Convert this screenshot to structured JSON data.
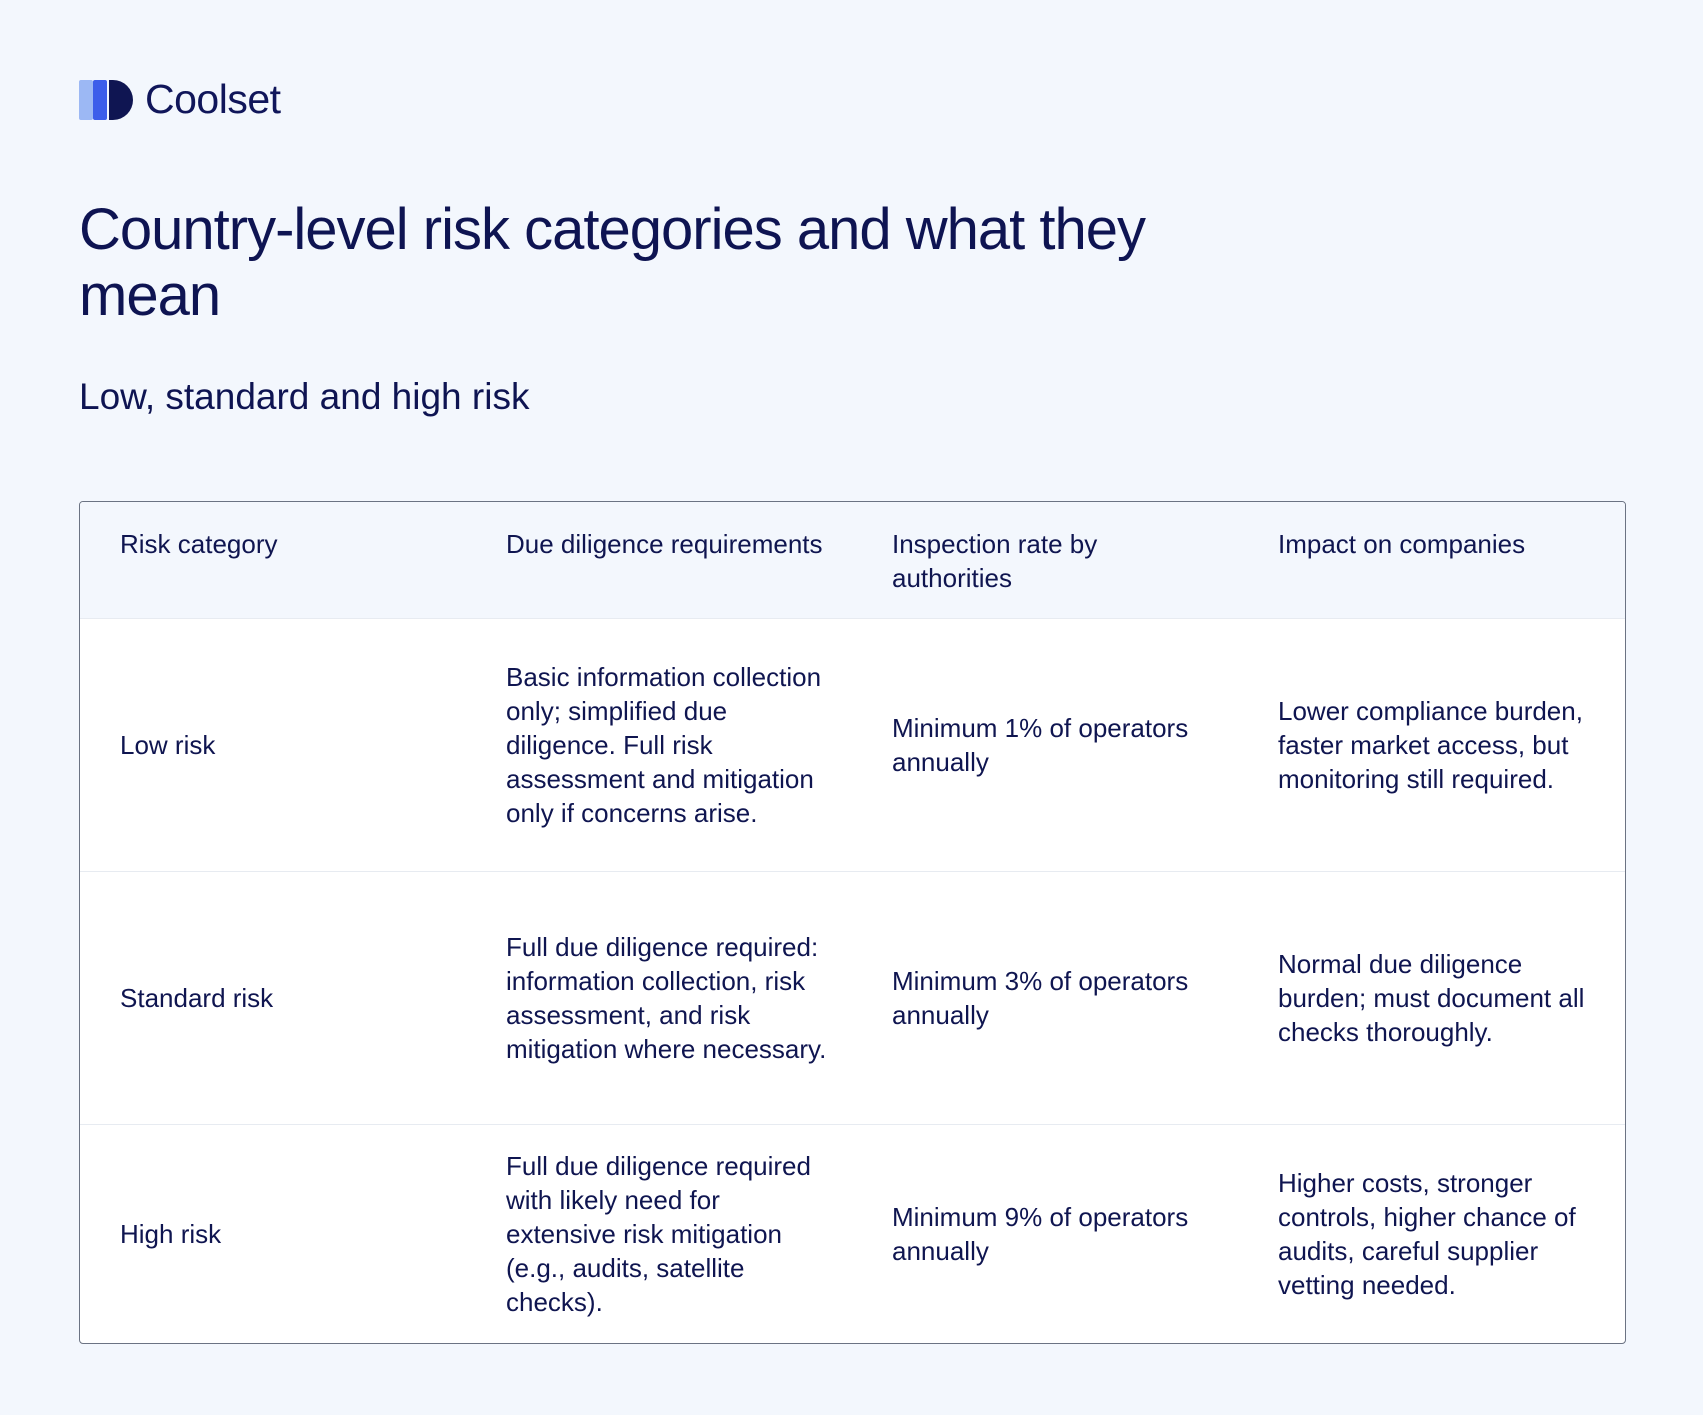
{
  "brand": {
    "name": "Coolset",
    "logo_icon": "coolset-logo-icon",
    "colors": {
      "light": "#9cb8f4",
      "mid": "#3d5eea",
      "dark": "#0f1552"
    }
  },
  "title": "Country-level risk categories and what they mean",
  "subtitle": "Low, standard and high risk",
  "table": {
    "headers": [
      "Risk category",
      "Due diligence requirements",
      "Inspection rate by authorities",
      "Impact on companies"
    ],
    "rows": [
      {
        "category": "Low risk",
        "due_diligence": "Basic information collection only; simplified due diligence. Full risk assessment and mitigation only if concerns arise.",
        "inspection_rate": "Minimum 1% of operators annually",
        "impact": "Lower compliance burden, faster market access, but monitoring still required."
      },
      {
        "category": "Standard risk",
        "due_diligence": "Full due diligence required: information collection, risk assessment, and risk mitigation where necessary.",
        "inspection_rate": "Minimum 3% of operators annually",
        "impact": "Normal due diligence burden; must document all checks thoroughly."
      },
      {
        "category": "High risk",
        "due_diligence": "Full due diligence required with likely need for extensive risk mitigation (e.g., audits, satellite checks).",
        "inspection_rate": "Minimum 9% of operators annually",
        "impact": "Higher costs, stronger controls, higher chance of audits, careful supplier vetting needed."
      }
    ]
  }
}
